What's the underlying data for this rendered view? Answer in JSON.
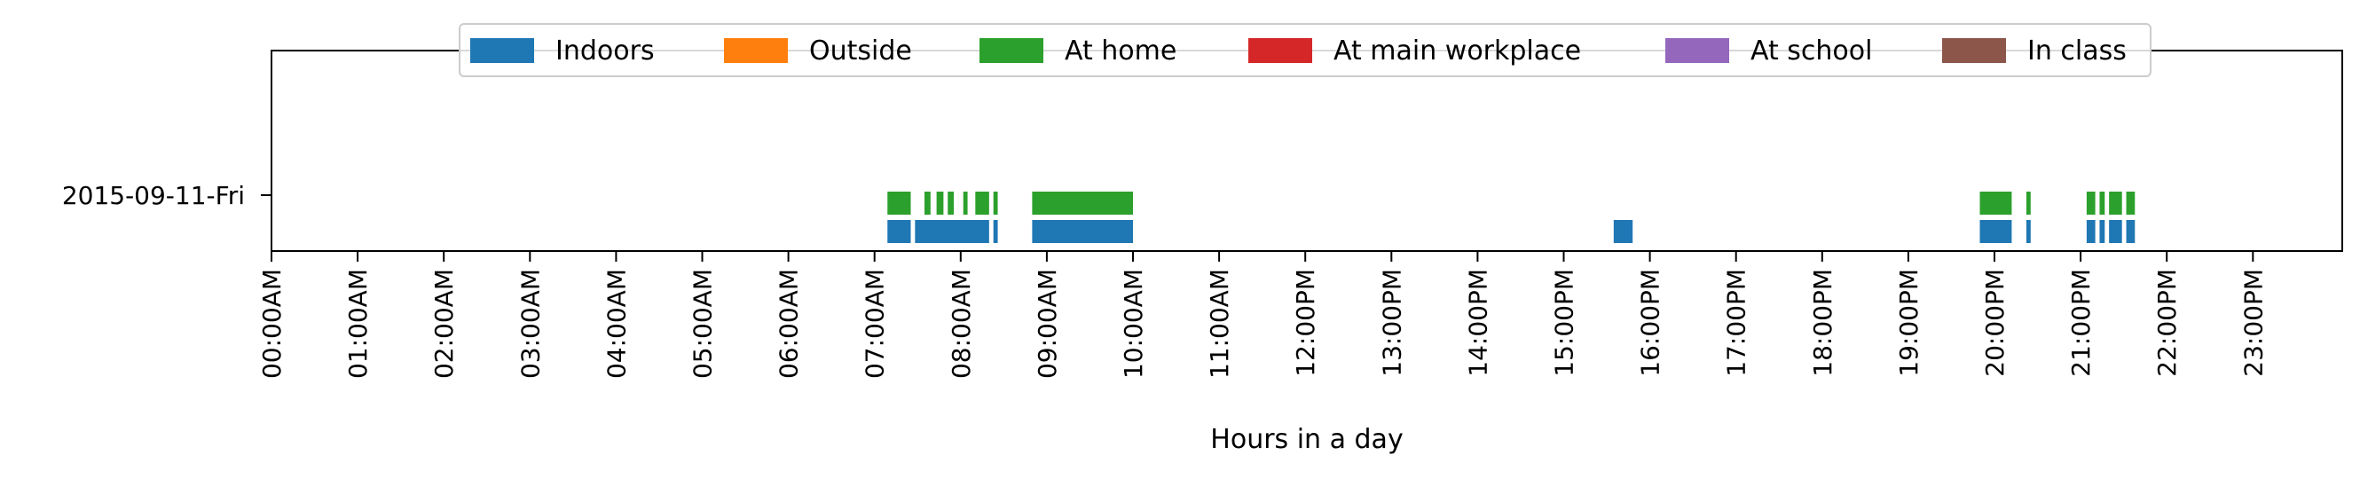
{
  "chart_data": {
    "type": "bar",
    "orientation": "horizontal-timeline",
    "title": "",
    "xlabel": "Hours in a day",
    "ylabel": "",
    "xlim": [
      0,
      24
    ],
    "x_ticks": [
      {
        "hour": 0,
        "label": "00:00AM"
      },
      {
        "hour": 1,
        "label": "01:00AM"
      },
      {
        "hour": 2,
        "label": "02:00AM"
      },
      {
        "hour": 3,
        "label": "03:00AM"
      },
      {
        "hour": 4,
        "label": "04:00AM"
      },
      {
        "hour": 5,
        "label": "05:00AM"
      },
      {
        "hour": 6,
        "label": "06:00AM"
      },
      {
        "hour": 7,
        "label": "07:00AM"
      },
      {
        "hour": 8,
        "label": "08:00AM"
      },
      {
        "hour": 9,
        "label": "09:00AM"
      },
      {
        "hour": 10,
        "label": "10:00AM"
      },
      {
        "hour": 11,
        "label": "11:00AM"
      },
      {
        "hour": 12,
        "label": "12:00PM"
      },
      {
        "hour": 13,
        "label": "13:00PM"
      },
      {
        "hour": 14,
        "label": "14:00PM"
      },
      {
        "hour": 15,
        "label": "15:00PM"
      },
      {
        "hour": 16,
        "label": "16:00PM"
      },
      {
        "hour": 17,
        "label": "17:00PM"
      },
      {
        "hour": 18,
        "label": "18:00PM"
      },
      {
        "hour": 19,
        "label": "19:00PM"
      },
      {
        "hour": 20,
        "label": "20:00PM"
      },
      {
        "hour": 21,
        "label": "21:00PM"
      },
      {
        "hour": 22,
        "label": "22:00PM"
      },
      {
        "hour": 23,
        "label": "23:00PM"
      }
    ],
    "y_categories": [
      "2015-09-11-Fri"
    ],
    "grid": false,
    "legend_placement": "top-center",
    "series": [
      {
        "name": "Indoors",
        "color": "#1f77b4",
        "intervals": [
          [
            7.15,
            7.42
          ],
          [
            7.47,
            8.33
          ],
          [
            8.38,
            8.43
          ],
          [
            8.83,
            10.0
          ],
          [
            15.58,
            15.8
          ],
          [
            19.83,
            20.2
          ],
          [
            20.37,
            20.42
          ],
          [
            21.07,
            21.17
          ],
          [
            21.22,
            21.28
          ],
          [
            21.33,
            21.48
          ],
          [
            21.53,
            21.63
          ]
        ]
      },
      {
        "name": "Outside",
        "color": "#ff7f0e",
        "intervals": []
      },
      {
        "name": "At home",
        "color": "#2ca02c",
        "intervals": [
          [
            7.15,
            7.42
          ],
          [
            7.58,
            7.65
          ],
          [
            7.72,
            7.8
          ],
          [
            7.85,
            7.92
          ],
          [
            8.03,
            8.08
          ],
          [
            8.17,
            8.33
          ],
          [
            8.38,
            8.43
          ],
          [
            8.83,
            10.0
          ],
          [
            19.83,
            20.2
          ],
          [
            20.37,
            20.42
          ],
          [
            21.07,
            21.17
          ],
          [
            21.22,
            21.28
          ],
          [
            21.33,
            21.48
          ],
          [
            21.53,
            21.63
          ]
        ]
      },
      {
        "name": "At main workplace",
        "color": "#d62728",
        "intervals": []
      },
      {
        "name": "At school",
        "color": "#9467bd",
        "intervals": []
      },
      {
        "name": "In class",
        "color": "#8c564b",
        "intervals": []
      }
    ]
  }
}
